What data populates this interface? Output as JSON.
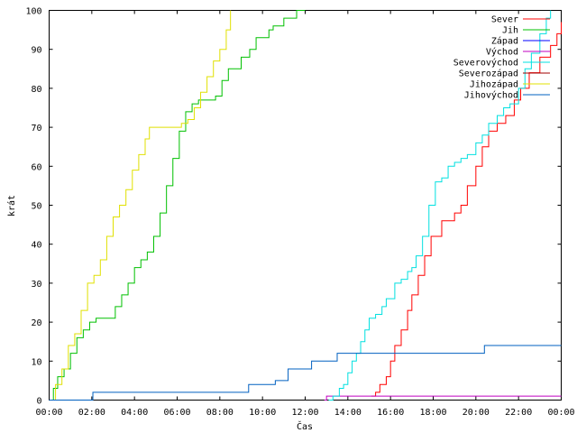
{
  "chart_data": {
    "type": "line",
    "xlabel": "Čas",
    "ylabel": "krát",
    "xlim": [
      0,
      24
    ],
    "ylim": [
      0,
      100
    ],
    "x_ticks": [
      {
        "value": 0,
        "label": "00:00"
      },
      {
        "value": 2,
        "label": "02:00"
      },
      {
        "value": 4,
        "label": "04:00"
      },
      {
        "value": 6,
        "label": "06:00"
      },
      {
        "value": 8,
        "label": "08:00"
      },
      {
        "value": 10,
        "label": "10:00"
      },
      {
        "value": 12,
        "label": "12:00"
      },
      {
        "value": 14,
        "label": "14:00"
      },
      {
        "value": 16,
        "label": "16:00"
      },
      {
        "value": 18,
        "label": "18:00"
      },
      {
        "value": 20,
        "label": "20:00"
      },
      {
        "value": 22,
        "label": "22:00"
      },
      {
        "value": 24,
        "label": "00:00"
      }
    ],
    "y_ticks": [
      0,
      10,
      20,
      30,
      40,
      50,
      60,
      70,
      80,
      90,
      100
    ],
    "grid": false,
    "legend_position": "top-right",
    "step": true,
    "series": [
      {
        "name": "Sever",
        "color": "#ff0000",
        "x": [
          15.1,
          15.3,
          15.5,
          15.8,
          16.0,
          16.2,
          16.5,
          16.8,
          17.0,
          17.3,
          17.6,
          17.9,
          18.4,
          18.8,
          19.0,
          19.3,
          19.6,
          20.0,
          20.3,
          20.6,
          21.0,
          21.4,
          21.8,
          22.1,
          22.5,
          23.0,
          23.5,
          23.8,
          24.0
        ],
        "y": [
          1,
          2,
          4,
          6,
          10,
          14,
          18,
          23,
          27,
          32,
          37,
          42,
          46,
          46,
          48,
          50,
          55,
          60,
          65,
          69,
          71,
          73,
          77,
          80,
          84,
          88,
          91,
          94,
          97
        ]
      },
      {
        "name": "Jih",
        "color": "#00c000",
        "x": [
          0.0,
          0.2,
          0.4,
          0.7,
          1.0,
          1.3,
          1.6,
          1.9,
          2.2,
          2.9,
          3.1,
          3.4,
          3.7,
          4.0,
          4.3,
          4.6,
          4.9,
          5.2,
          5.5,
          5.8,
          6.1,
          6.4,
          6.7,
          7.0,
          7.5,
          7.8,
          8.1,
          8.4,
          8.7,
          9.0,
          9.4,
          9.7,
          10.0,
          10.3,
          10.5,
          11.0,
          11.3,
          11.6,
          12.0
        ],
        "y": [
          0,
          3,
          6,
          8,
          12,
          16,
          18,
          20,
          21,
          21,
          24,
          27,
          30,
          34,
          36,
          38,
          42,
          48,
          55,
          62,
          69,
          74,
          76,
          77,
          77,
          78,
          82,
          85,
          85,
          88,
          90,
          93,
          93,
          95,
          96,
          98,
          98,
          100,
          100
        ]
      },
      {
        "name": "Západ",
        "color": "#0000ff",
        "x": [],
        "y": []
      },
      {
        "name": "Východ",
        "color": "#c000c0",
        "x": [
          12.9,
          13.0,
          13.2,
          24.0
        ],
        "y": [
          0,
          1,
          1,
          1
        ]
      },
      {
        "name": "Severovýchod",
        "color": "#00e0e0",
        "x": [
          13.1,
          13.3,
          13.6,
          13.8,
          14.0,
          14.2,
          14.4,
          14.6,
          14.8,
          15.0,
          15.3,
          15.6,
          15.8,
          16.2,
          16.5,
          16.8,
          17.0,
          17.2,
          17.5,
          17.8,
          18.1,
          18.4,
          18.7,
          19.0,
          19.3,
          19.6,
          20.0,
          20.3,
          20.6,
          21.0,
          21.3,
          21.6,
          22.0,
          22.3,
          22.6,
          23.0,
          23.3,
          23.5
        ],
        "y": [
          0,
          1,
          3,
          4,
          7,
          10,
          12,
          15,
          18,
          21,
          22,
          24,
          26,
          30,
          31,
          33,
          34,
          37,
          42,
          50,
          56,
          57,
          60,
          61,
          62,
          63,
          66,
          68,
          71,
          73,
          75,
          76,
          80,
          85,
          89,
          94,
          98,
          100
        ]
      },
      {
        "name": "Severozápad",
        "color": "#a00000",
        "x": [],
        "y": []
      },
      {
        "name": "Jihozápad",
        "color": "#e0e000",
        "x": [
          0.0,
          0.3,
          0.6,
          0.9,
          1.2,
          1.5,
          1.8,
          2.1,
          2.4,
          2.7,
          3.0,
          3.3,
          3.6,
          3.9,
          4.2,
          4.5,
          4.7,
          5.0,
          5.4,
          5.8,
          6.2,
          6.5,
          6.8,
          7.1,
          7.4,
          7.7,
          8.0,
          8.3,
          8.5
        ],
        "y": [
          0,
          4,
          8,
          14,
          17,
          23,
          30,
          32,
          36,
          42,
          47,
          50,
          54,
          59,
          63,
          67,
          70,
          70,
          70,
          70,
          71,
          72,
          75,
          79,
          83,
          87,
          90,
          95,
          100
        ]
      },
      {
        "name": "Jihovýchod",
        "color": "#0060c0",
        "x": [
          0.0,
          2.0,
          2.05,
          9.3,
          9.35,
          10.3,
          10.6,
          11.2,
          12.0,
          12.3,
          13.0,
          13.5,
          20.3,
          20.4,
          24.0
        ],
        "y": [
          0,
          0,
          2,
          2,
          4,
          4,
          5,
          8,
          8,
          10,
          10,
          12,
          12,
          14,
          14
        ]
      }
    ]
  }
}
